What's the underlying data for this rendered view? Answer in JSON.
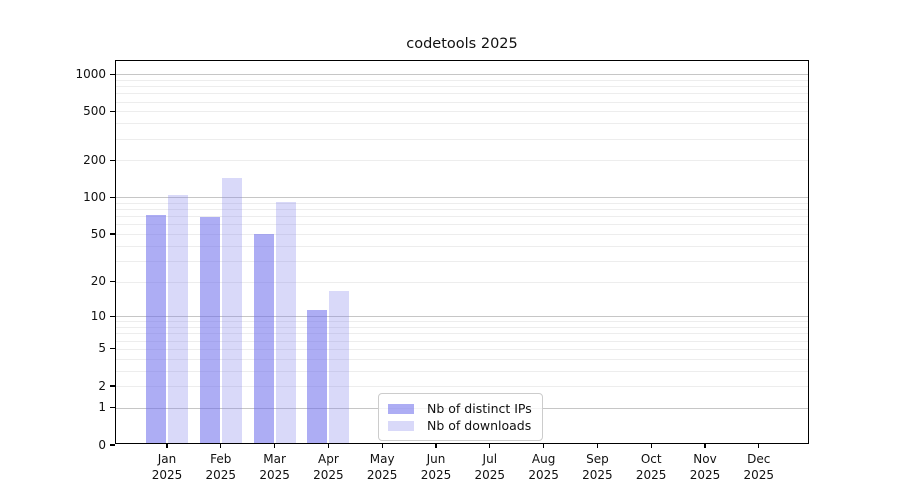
{
  "title": "codetools 2025",
  "chart_data": {
    "type": "bar",
    "title": "codetools 2025",
    "scale": "log1p",
    "categories": [
      "Jan",
      "Feb",
      "Mar",
      "Apr",
      "May",
      "Jun",
      "Jul",
      "Aug",
      "Sep",
      "Oct",
      "Nov",
      "Dec"
    ],
    "year": "2025",
    "series": [
      {
        "name": "Nb of distinct IPs",
        "color": "rgba(105,105,235,0.55)",
        "values": [
          69,
          67,
          48,
          11,
          0,
          0,
          0,
          0,
          0,
          0,
          0,
          0
        ]
      },
      {
        "name": "Nb of downloads",
        "color": "rgba(130,130,235,0.30)",
        "values": [
          100,
          139,
          88,
          16,
          0,
          0,
          0,
          0,
          0,
          0,
          0,
          0
        ]
      }
    ],
    "xlabel": "",
    "ylabel": "",
    "yticks": [
      0,
      1,
      2,
      5,
      10,
      20,
      50,
      100,
      200,
      500,
      1000
    ],
    "major_gridlines": [
      1,
      10,
      100,
      1000
    ],
    "minor_gridlines": [
      2,
      3,
      4,
      5,
      6,
      7,
      8,
      9,
      20,
      30,
      40,
      50,
      60,
      70,
      80,
      90,
      200,
      300,
      400,
      500,
      600,
      700,
      800,
      900
    ],
    "ylim": [
      0,
      1280
    ],
    "grid": true,
    "legend_position": "lower-center-inside",
    "colors": {
      "major_grid": "#c6c6c6",
      "minor_grid": "#ededed",
      "spine": "#000000",
      "background": "#ffffff"
    }
  }
}
